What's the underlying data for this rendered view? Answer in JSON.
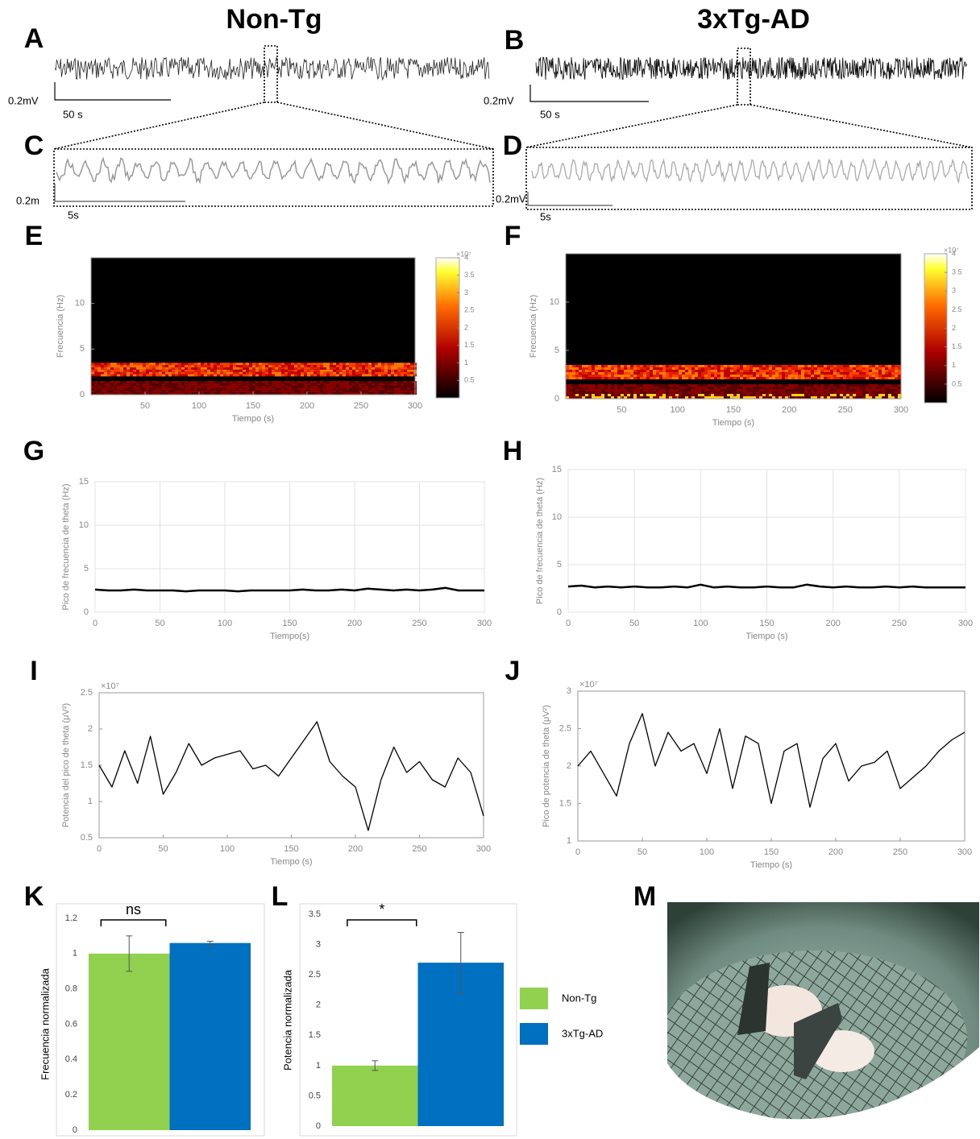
{
  "column_titles": [
    "Non-Tg",
    "3xTg-AD"
  ],
  "panel_labels": [
    "A",
    "B",
    "C",
    "D",
    "E",
    "F",
    "G",
    "H",
    "I",
    "J",
    "K",
    "L",
    "M"
  ],
  "scale_bars": [
    {
      "amplitude": "0.2mV",
      "time": "50 s"
    },
    {
      "amplitude": "0.2mV",
      "time": "50 s"
    },
    {
      "amplitude": "0.2m",
      "time": "5s"
    },
    {
      "amplitude": "0.2mV",
      "time": "5s"
    }
  ],
  "chart_data": [
    {
      "type": "spectrogram",
      "xlabel": "Tiempo (s)",
      "ylabel": "Frecuencia (Hz)",
      "xlim": [
        0,
        300
      ],
      "xticks": [
        50,
        100,
        150,
        200,
        250,
        300
      ],
      "ylim": [
        0,
        15
      ],
      "yticks": [
        0,
        5,
        10
      ],
      "colorbar_lim": [
        0,
        4
      ],
      "colorbar_ticks": [
        0.5,
        1,
        1.5,
        2,
        2.5,
        3,
        3.5,
        4
      ],
      "colorbar_multiplier": "×10⁷"
    },
    {
      "type": "spectrogram",
      "xlabel": "Tiempo (s)",
      "ylabel": "Frecuencia (Hz)",
      "xlim": [
        0,
        300
      ],
      "xticks": [
        50,
        100,
        150,
        200,
        250,
        300
      ],
      "ylim": [
        0,
        15
      ],
      "yticks": [
        0,
        5,
        10
      ],
      "colorbar_lim": [
        0,
        4
      ],
      "colorbar_ticks": [
        0.5,
        1,
        1.5,
        2,
        2.5,
        3,
        3.5,
        4
      ],
      "colorbar_multiplier": "×10⁷"
    },
    {
      "type": "line",
      "xlabel": "Tiempo(s)",
      "ylabel": "Pico de frecuencia de theta (Hz)",
      "x": [
        0,
        10,
        20,
        30,
        40,
        50,
        60,
        70,
        80,
        90,
        100,
        110,
        120,
        130,
        140,
        150,
        160,
        170,
        180,
        190,
        200,
        210,
        220,
        230,
        240,
        250,
        260,
        270,
        280,
        290,
        300
      ],
      "series": [
        {
          "color": "#000000",
          "values": [
            2.6,
            2.5,
            2.5,
            2.6,
            2.5,
            2.5,
            2.5,
            2.4,
            2.5,
            2.5,
            2.5,
            2.4,
            2.5,
            2.5,
            2.5,
            2.5,
            2.6,
            2.5,
            2.5,
            2.6,
            2.5,
            2.7,
            2.6,
            2.5,
            2.6,
            2.5,
            2.6,
            2.8,
            2.5,
            2.5,
            2.5
          ]
        }
      ],
      "xlim": [
        0,
        300
      ],
      "xticks": [
        0,
        50,
        100,
        150,
        200,
        250,
        300
      ],
      "ylim": [
        0,
        15
      ],
      "yticks": [
        0,
        5,
        10,
        15
      ],
      "grid": true
    },
    {
      "type": "line",
      "xlabel": "Tiempo (s)",
      "ylabel": "Pico de frecuencia de theta (Hz)",
      "x": [
        0,
        10,
        20,
        30,
        40,
        50,
        60,
        70,
        80,
        90,
        100,
        110,
        120,
        130,
        140,
        150,
        160,
        170,
        180,
        190,
        200,
        210,
        220,
        230,
        240,
        250,
        260,
        270,
        280,
        290,
        300
      ],
      "series": [
        {
          "color": "#000000",
          "values": [
            2.7,
            2.8,
            2.6,
            2.7,
            2.6,
            2.7,
            2.6,
            2.6,
            2.7,
            2.6,
            2.9,
            2.6,
            2.7,
            2.6,
            2.6,
            2.7,
            2.6,
            2.6,
            2.9,
            2.7,
            2.6,
            2.7,
            2.6,
            2.6,
            2.7,
            2.6,
            2.7,
            2.6,
            2.6,
            2.6,
            2.6
          ]
        }
      ],
      "xlim": [
        0,
        300
      ],
      "xticks": [
        0,
        50,
        100,
        150,
        200,
        250,
        300
      ],
      "ylim": [
        0,
        15
      ],
      "yticks": [
        0,
        5,
        10,
        15
      ],
      "grid": true
    },
    {
      "type": "line",
      "xlabel": "Tiempo (s)",
      "ylabel": "Potencia del pico de theta (μV²)",
      "y_multiplier": "×10⁷",
      "x": [
        0,
        10,
        20,
        30,
        40,
        50,
        60,
        70,
        80,
        90,
        100,
        110,
        120,
        130,
        140,
        150,
        160,
        170,
        180,
        190,
        200,
        210,
        220,
        230,
        240,
        250,
        260,
        270,
        280,
        290,
        300
      ],
      "series": [
        {
          "color": "#000000",
          "values": [
            1.5,
            1.2,
            1.7,
            1.25,
            1.9,
            1.1,
            1.4,
            1.8,
            1.5,
            1.6,
            1.65,
            1.7,
            1.45,
            1.5,
            1.35,
            1.6,
            1.85,
            2.1,
            1.55,
            1.35,
            1.2,
            0.6,
            1.3,
            1.75,
            1.4,
            1.55,
            1.3,
            1.2,
            1.6,
            1.4,
            0.8
          ]
        }
      ],
      "xlim": [
        0,
        300
      ],
      "xticks": [
        0,
        50,
        100,
        150,
        200,
        250,
        300
      ],
      "ylim": [
        0.5,
        2.5
      ],
      "yticks": [
        0.5,
        1,
        1.5,
        2,
        2.5
      ],
      "grid": false
    },
    {
      "type": "line",
      "xlabel": "Tiempo (s)",
      "ylabel": "Pico de potencia de theta (μV²)",
      "y_multiplier": "×10⁷",
      "x": [
        0,
        10,
        20,
        30,
        40,
        50,
        60,
        70,
        80,
        90,
        100,
        110,
        120,
        130,
        140,
        150,
        160,
        170,
        180,
        190,
        200,
        210,
        220,
        230,
        240,
        250,
        260,
        270,
        280,
        290,
        300
      ],
      "series": [
        {
          "color": "#000000",
          "values": [
            2.0,
            2.2,
            1.9,
            1.6,
            2.3,
            2.7,
            2.0,
            2.45,
            2.2,
            2.3,
            1.9,
            2.5,
            1.7,
            2.4,
            2.3,
            1.5,
            2.2,
            2.3,
            1.45,
            2.1,
            2.3,
            1.8,
            2.0,
            2.05,
            2.2,
            1.7,
            1.85,
            2.0,
            2.2,
            2.35,
            2.45
          ]
        }
      ],
      "xlim": [
        0,
        300
      ],
      "xticks": [
        0,
        50,
        100,
        150,
        200,
        250,
        300
      ],
      "ylim": [
        1,
        3
      ],
      "yticks": [
        1,
        1.5,
        2,
        2.5,
        3
      ],
      "grid": false
    },
    {
      "type": "bar",
      "ylabel": "Frecuencia normalizada",
      "annotation": "ns",
      "categories": [
        null
      ],
      "series": [
        {
          "name": "Non-Tg",
          "color": "#92d050",
          "values": [
            1
          ],
          "errors": [
            0.1
          ]
        },
        {
          "name": "3xTg-AD",
          "color": "#0070c0",
          "values": [
            1.06
          ],
          "errors": [
            0.01
          ]
        }
      ],
      "ylim": [
        0,
        1.2
      ],
      "yticks": [
        0,
        0.2,
        0.4,
        0.6,
        0.8,
        1,
        1.2
      ]
    },
    {
      "type": "bar",
      "ylabel": "Potencia normalizada",
      "annotation": "*",
      "categories": [
        null
      ],
      "series": [
        {
          "name": "Non-Tg",
          "color": "#92d050",
          "values": [
            1
          ],
          "errors": [
            0.08
          ]
        },
        {
          "name": "3xTg-AD",
          "color": "#0070c0",
          "values": [
            2.7
          ],
          "errors": [
            0.5
          ]
        }
      ],
      "ylim": [
        0,
        3.5
      ],
      "yticks": [
        0,
        0.5,
        1,
        1.5,
        2,
        2.5,
        3,
        3.5
      ],
      "legend": "right"
    }
  ]
}
